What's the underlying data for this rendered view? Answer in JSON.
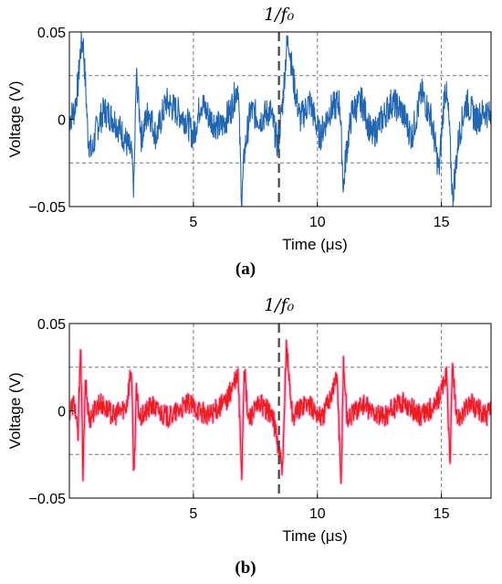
{
  "chart_data": [
    {
      "type": "line",
      "panel": "a",
      "caption": "(a)",
      "annotation": "1/f₀",
      "xlabel": "Time (μs)",
      "ylabel": "Voltage (V)",
      "xlim": [
        0,
        17
      ],
      "ylim": [
        -0.05,
        0.05
      ],
      "xticks": [
        5,
        10,
        15
      ],
      "xtick_labels": [
        "5",
        "10",
        "15"
      ],
      "yticks": [
        -0.05,
        0,
        0.05
      ],
      "ytick_labels": [
        "−0.05",
        "0",
        "0.05"
      ],
      "grid_x": [
        5,
        10,
        15
      ],
      "grid_y": [
        -0.025,
        0.025
      ],
      "marker_line_x": 8.45,
      "color": "#2166b3",
      "series": [
        {
          "x": [
            0,
            0.2,
            0.35,
            0.45,
            0.55,
            0.65,
            0.75,
            0.9,
            1.1,
            1.4,
            1.8,
            2.2,
            2.5,
            2.6,
            2.7,
            2.9,
            3.2,
            3.5,
            3.9,
            4.3,
            4.7,
            5.0,
            5.3,
            5.7,
            6.1,
            6.5,
            6.8,
            6.95,
            7.05,
            7.3,
            7.7,
            8.1,
            8.4,
            8.6,
            8.75,
            8.85,
            9.0,
            9.3,
            9.7,
            10.1,
            10.5,
            10.9,
            11.05,
            11.15,
            11.4,
            11.8,
            12.2,
            12.6,
            13.0,
            13.4,
            13.8,
            14.2,
            14.6,
            14.9,
            15.15,
            15.3,
            15.45,
            15.7,
            16.0,
            16.4,
            16.8,
            17.0
          ],
          "y": [
            0.0,
            0.005,
            0.02,
            0.04,
            0.045,
            0.02,
            -0.01,
            -0.02,
            -0.005,
            0.005,
            0.0,
            -0.01,
            -0.02,
            -0.04,
            0.025,
            -0.01,
            0.005,
            -0.01,
            0.01,
            0.005,
            0.0,
            -0.01,
            0.01,
            0.0,
            -0.005,
            0.005,
            0.02,
            -0.048,
            -0.02,
            0.005,
            0.0,
            0.005,
            -0.015,
            0.01,
            0.04,
            0.045,
            0.025,
            0.0,
            0.01,
            -0.01,
            0.005,
            0.01,
            -0.04,
            -0.02,
            0.005,
            0.01,
            -0.01,
            0.0,
            0.01,
            0.005,
            -0.01,
            0.015,
            0.0,
            -0.03,
            0.02,
            0.0,
            -0.045,
            -0.01,
            0.01,
            0.0,
            0.005,
            0.0
          ]
        }
      ]
    },
    {
      "type": "line",
      "panel": "b",
      "caption": "(b)",
      "annotation": "1/f₀",
      "xlabel": "Time (μs)",
      "ylabel": "Voltage (V)",
      "xlim": [
        0,
        17
      ],
      "ylim": [
        -0.05,
        0.05
      ],
      "xticks": [
        5,
        10,
        15
      ],
      "xtick_labels": [
        "5",
        "10",
        "15"
      ],
      "yticks": [
        -0.05,
        0,
        0.05
      ],
      "ytick_labels": [
        "−0.05",
        "0",
        "0.05"
      ],
      "grid_x": [
        5,
        10,
        15
      ],
      "grid_y": [
        -0.025,
        0.025
      ],
      "marker_line_x": 8.45,
      "color": "#ee1c1c",
      "series": [
        {
          "x": [
            0,
            0.2,
            0.35,
            0.45,
            0.55,
            0.65,
            0.8,
            1.2,
            1.8,
            2.3,
            2.5,
            2.6,
            2.7,
            2.85,
            3.3,
            4.0,
            4.8,
            5.6,
            6.3,
            6.8,
            6.95,
            7.05,
            7.2,
            7.7,
            8.2,
            8.6,
            8.75,
            8.85,
            9.0,
            9.5,
            10.2,
            10.8,
            10.95,
            11.05,
            11.2,
            11.8,
            12.6,
            13.4,
            14.2,
            14.8,
            15.2,
            15.35,
            15.45,
            15.6,
            16.2,
            16.8,
            17.0
          ],
          "y": [
            0.0,
            0.005,
            -0.015,
            0.04,
            -0.035,
            0.015,
            -0.005,
            0.005,
            -0.003,
            0.003,
            0.025,
            -0.037,
            0.01,
            -0.005,
            0.003,
            -0.004,
            0.004,
            -0.003,
            0.005,
            0.02,
            -0.036,
            0.026,
            -0.005,
            0.004,
            -0.003,
            -0.035,
            0.038,
            0.02,
            -0.004,
            0.005,
            -0.004,
            0.02,
            -0.044,
            0.028,
            -0.005,
            0.004,
            -0.004,
            0.005,
            -0.003,
            0.004,
            0.02,
            -0.028,
            0.028,
            -0.005,
            0.004,
            -0.003,
            0.0
          ]
        }
      ]
    }
  ]
}
